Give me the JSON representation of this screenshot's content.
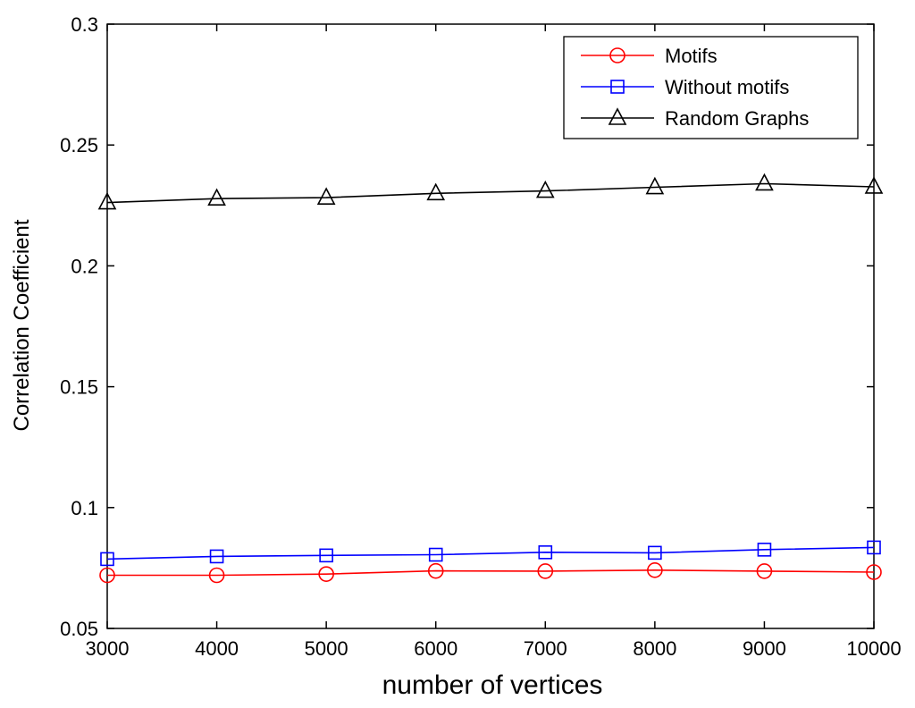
{
  "chart_data": {
    "type": "line",
    "title": "",
    "xlabel": "number of vertices",
    "ylabel": "Correlation Coefficient",
    "x": [
      3000,
      4000,
      5000,
      6000,
      7000,
      8000,
      9000,
      10000
    ],
    "xlim": [
      3000,
      10000
    ],
    "ylim": [
      0.05,
      0.3
    ],
    "xticks": [
      "3000",
      "4000",
      "5000",
      "6000",
      "7000",
      "8000",
      "9000",
      "10000"
    ],
    "yticks": [
      "0.05",
      "0.1",
      "0.15",
      "0.2",
      "0.25",
      "0.3"
    ],
    "grid": false,
    "legend_position": "top-right",
    "series": [
      {
        "name": "Motifs",
        "color": "#ff0000",
        "marker": "circle",
        "values": [
          0.072,
          0.072,
          0.0725,
          0.0738,
          0.0737,
          0.0741,
          0.0737,
          0.0733
        ]
      },
      {
        "name": "Without motifs",
        "color": "#0000ff",
        "marker": "square",
        "values": [
          0.0787,
          0.0798,
          0.0802,
          0.0805,
          0.0815,
          0.0813,
          0.0826,
          0.0835
        ]
      },
      {
        "name": "Random Graphs",
        "color": "#000000",
        "marker": "triangle",
        "values": [
          0.2262,
          0.2278,
          0.2282,
          0.23,
          0.231,
          0.2325,
          0.234,
          0.2327
        ]
      }
    ]
  }
}
